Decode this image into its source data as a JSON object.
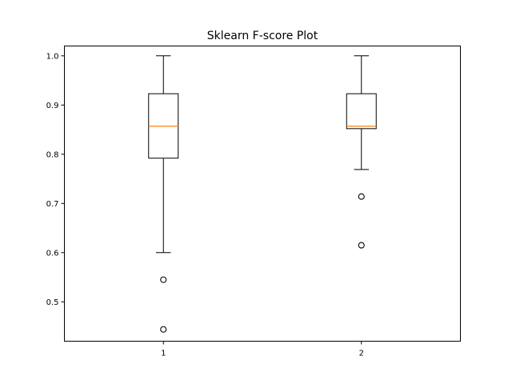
{
  "chart_data": {
    "type": "box",
    "title": "Sklearn F-score Plot",
    "xlabel": "",
    "ylabel": "",
    "ylim": [
      0.42,
      1.02
    ],
    "yticks": [
      "0.5",
      "0.6",
      "0.7",
      "0.8",
      "0.9",
      "1.0"
    ],
    "categories": [
      "1",
      "2"
    ],
    "boxes": [
      {
        "category": "1",
        "whisker_low": 0.6,
        "q1": 0.792,
        "median": 0.857,
        "q3": 0.923,
        "whisker_high": 1.0,
        "outliers": [
          0.545,
          0.444
        ]
      },
      {
        "category": "2",
        "whisker_low": 0.769,
        "q1": 0.852,
        "median": 0.857,
        "q3": 0.923,
        "whisker_high": 1.0,
        "outliers": [
          0.714,
          0.615
        ]
      }
    ],
    "grid": false,
    "legend": "none",
    "colors": {
      "box": "#000000",
      "median": "#ff7f0e",
      "outlier_edge": "#000000",
      "background": "#ffffff"
    }
  }
}
